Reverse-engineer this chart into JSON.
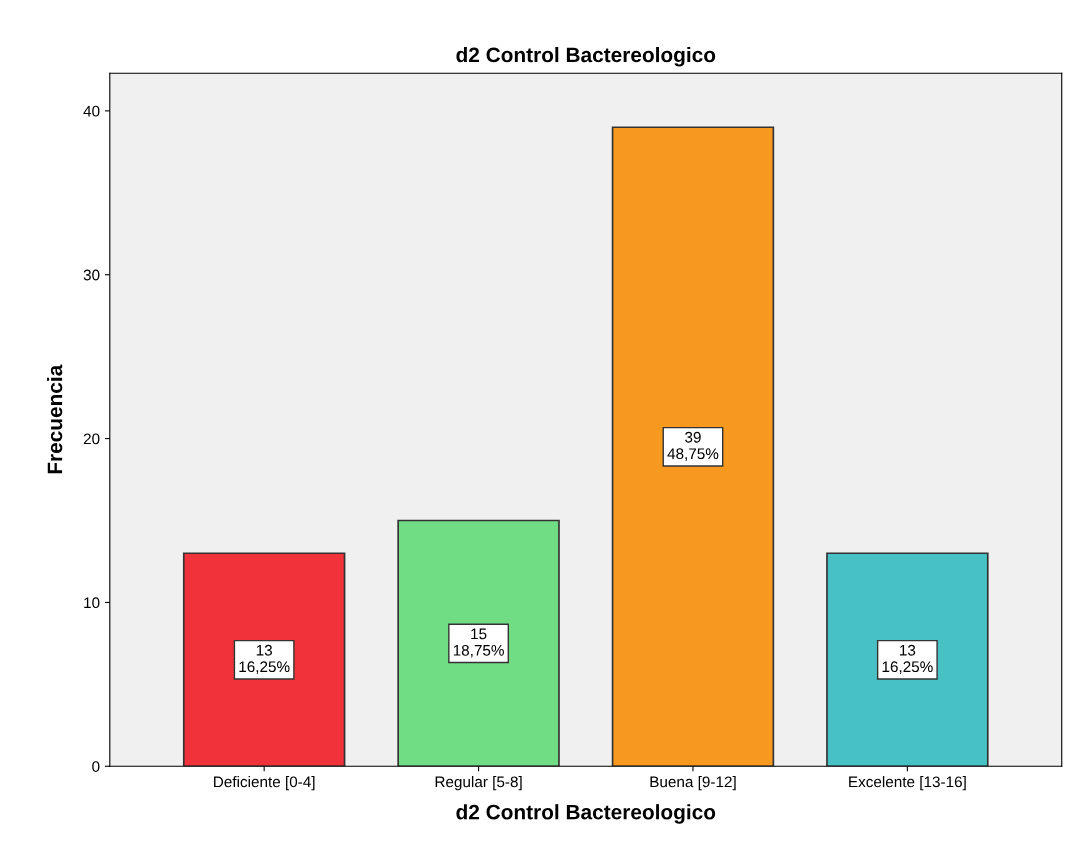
{
  "chart_data": {
    "type": "bar",
    "title": "d2 Control Bactereologico",
    "xlabel": "d2 Control Bactereologico",
    "ylabel": "Frecuencia",
    "categories": [
      "Deficiente [0-4]",
      "Regular [5-8]",
      "Buena [9-12]",
      "Excelente [13-16]"
    ],
    "values": [
      13,
      15,
      39,
      13
    ],
    "colors": [
      "#f0323a",
      "#70dc84",
      "#f7991f",
      "#48c1c4"
    ],
    "value_labels": [
      "13\n16,25%",
      "15\n18,75%",
      "39\n48,75%",
      "13\n16,25%"
    ],
    "ylim": [
      0,
      42.3
    ],
    "yticks": [
      0,
      10,
      20,
      30,
      40
    ],
    "grid": false
  }
}
